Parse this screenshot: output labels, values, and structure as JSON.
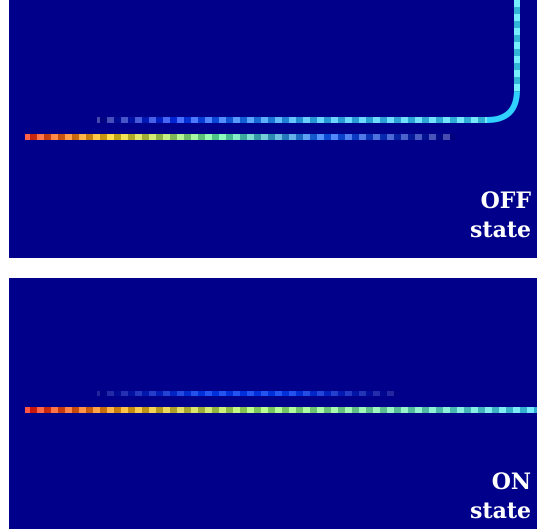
{
  "panels": {
    "off": {
      "state_word": "OFF",
      "state_suffix": "state"
    },
    "on": {
      "state_word": "ON",
      "state_suffix": "state"
    }
  },
  "colors": {
    "background": "#00008b",
    "page": "#ffffff",
    "label": "#ffffff",
    "colormap": [
      "#00008b",
      "#0000ff",
      "#00a0ff",
      "#00ffff",
      "#7fff7f",
      "#ffff00",
      "#ff7f00",
      "#ff0000",
      "#8b0000"
    ]
  }
}
